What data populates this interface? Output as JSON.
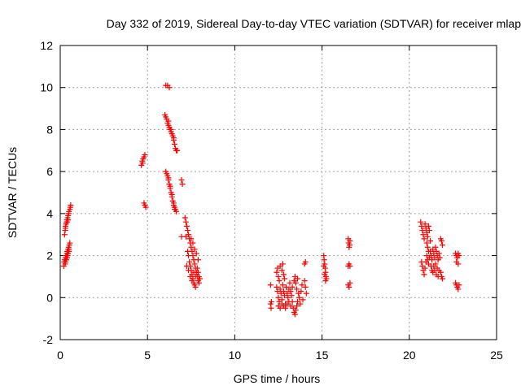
{
  "chart_data": {
    "type": "scatter",
    "title": "Day 332 of 2019, Sidereal Day-to-day VTEC variation (SDTVAR) for receiver mlap",
    "xlabel": "GPS time / hours",
    "ylabel": "SDTVAR / TECUs",
    "xlim": [
      0,
      25
    ],
    "ylim": [
      -2,
      12
    ],
    "x_ticks": [
      0,
      5,
      10,
      15,
      20,
      25
    ],
    "y_ticks": [
      -2,
      0,
      2,
      4,
      6,
      8,
      10,
      12
    ],
    "grid": true,
    "marker": "+",
    "marker_color": "#ff0000",
    "series": [
      {
        "name": "SDTVAR",
        "points": [
          [
            0.2,
            1.5
          ],
          [
            0.22,
            1.7
          ],
          [
            0.25,
            1.8
          ],
          [
            0.28,
            1.6
          ],
          [
            0.3,
            1.9
          ],
          [
            0.32,
            2.0
          ],
          [
            0.35,
            1.8
          ],
          [
            0.38,
            2.1
          ],
          [
            0.4,
            2.2
          ],
          [
            0.42,
            2.0
          ],
          [
            0.45,
            2.3
          ],
          [
            0.48,
            2.4
          ],
          [
            0.5,
            2.2
          ],
          [
            0.52,
            2.5
          ],
          [
            0.55,
            2.6
          ],
          [
            0.3,
            1.7
          ],
          [
            0.35,
            2.0
          ],
          [
            0.4,
            1.9
          ],
          [
            0.45,
            2.1
          ],
          [
            0.5,
            2.3
          ],
          [
            0.25,
            3.0
          ],
          [
            0.28,
            3.2
          ],
          [
            0.3,
            3.4
          ],
          [
            0.33,
            3.5
          ],
          [
            0.36,
            3.6
          ],
          [
            0.38,
            3.7
          ],
          [
            0.4,
            3.6
          ],
          [
            0.42,
            3.8
          ],
          [
            0.45,
            3.9
          ],
          [
            0.48,
            4.0
          ],
          [
            0.5,
            4.1
          ],
          [
            0.55,
            4.2
          ],
          [
            0.58,
            4.3
          ],
          [
            0.6,
            4.4
          ],
          [
            0.3,
            3.3
          ],
          [
            0.45,
            3.7
          ],
          [
            4.65,
            6.3
          ],
          [
            4.7,
            6.5
          ],
          [
            4.75,
            6.6
          ],
          [
            4.8,
            6.7
          ],
          [
            4.85,
            6.8
          ],
          [
            4.72,
            6.4
          ],
          [
            4.8,
            4.5
          ],
          [
            4.85,
            4.4
          ],
          [
            4.9,
            4.3
          ],
          [
            6.05,
            10.1
          ],
          [
            6.15,
            10.1
          ],
          [
            6.25,
            10.0
          ],
          [
            6.0,
            8.7
          ],
          [
            6.05,
            8.6
          ],
          [
            6.1,
            8.5
          ],
          [
            6.15,
            8.3
          ],
          [
            6.2,
            8.2
          ],
          [
            6.25,
            8.1
          ],
          [
            6.3,
            8.0
          ],
          [
            6.35,
            7.9
          ],
          [
            6.4,
            7.8
          ],
          [
            6.45,
            7.7
          ],
          [
            6.5,
            7.5
          ],
          [
            6.55,
            7.3
          ],
          [
            6.6,
            7.1
          ],
          [
            6.65,
            7.0
          ],
          [
            6.7,
            7.0
          ],
          [
            6.2,
            8.4
          ],
          [
            6.35,
            8.0
          ],
          [
            6.5,
            7.6
          ],
          [
            6.05,
            6.0
          ],
          [
            6.1,
            5.9
          ],
          [
            6.15,
            5.8
          ],
          [
            6.2,
            5.6
          ],
          [
            6.25,
            5.4
          ],
          [
            6.3,
            5.2
          ],
          [
            6.35,
            5.0
          ],
          [
            6.4,
            4.8
          ],
          [
            6.45,
            4.6
          ],
          [
            6.5,
            4.4
          ],
          [
            6.55,
            4.3
          ],
          [
            6.6,
            4.2
          ],
          [
            6.65,
            4.1
          ],
          [
            6.2,
            5.7
          ],
          [
            6.3,
            5.3
          ],
          [
            6.4,
            4.9
          ],
          [
            6.5,
            4.5
          ],
          [
            6.55,
            4.2
          ],
          [
            6.95,
            5.6
          ],
          [
            7.0,
            5.4
          ],
          [
            6.95,
            2.9
          ],
          [
            7.15,
            3.8
          ],
          [
            7.2,
            3.6
          ],
          [
            7.25,
            3.4
          ],
          [
            7.3,
            3.2
          ],
          [
            7.35,
            3.0
          ],
          [
            7.4,
            2.8
          ],
          [
            7.45,
            2.6
          ],
          [
            7.5,
            2.4
          ],
          [
            7.55,
            2.2
          ],
          [
            7.6,
            2.0
          ],
          [
            7.65,
            1.8
          ],
          [
            7.7,
            1.6
          ],
          [
            7.75,
            1.4
          ],
          [
            7.8,
            1.2
          ],
          [
            7.85,
            1.0
          ],
          [
            7.9,
            0.8
          ],
          [
            7.95,
            0.7
          ],
          [
            7.3,
            2.2
          ],
          [
            7.35,
            2.0
          ],
          [
            7.4,
            1.7
          ],
          [
            7.45,
            1.5
          ],
          [
            7.5,
            1.3
          ],
          [
            7.55,
            1.1
          ],
          [
            7.6,
            0.9
          ],
          [
            7.65,
            0.7
          ],
          [
            7.7,
            0.6
          ],
          [
            7.75,
            0.5
          ],
          [
            7.25,
            1.5
          ],
          [
            7.35,
            1.3
          ],
          [
            7.45,
            1.0
          ],
          [
            7.55,
            0.8
          ],
          [
            7.65,
            1.2
          ],
          [
            7.75,
            1.0
          ],
          [
            7.85,
            1.4
          ],
          [
            7.9,
            1.2
          ],
          [
            7.95,
            1.0
          ],
          [
            8.0,
            0.9
          ],
          [
            7.5,
            2.8
          ],
          [
            7.6,
            2.6
          ],
          [
            7.7,
            2.3
          ],
          [
            7.8,
            2.1
          ],
          [
            7.9,
            1.8
          ],
          [
            7.2,
            2.9
          ],
          [
            12.05,
            0.6
          ],
          [
            12.05,
            -0.3
          ],
          [
            12.08,
            -0.5
          ],
          [
            12.1,
            -0.2
          ],
          [
            12.4,
            1.2
          ],
          [
            12.45,
            1.4
          ],
          [
            12.5,
            1.0
          ],
          [
            12.55,
            0.8
          ],
          [
            12.6,
            1.5
          ],
          [
            12.7,
            1.3
          ],
          [
            12.75,
            1.6
          ],
          [
            12.8,
            1.1
          ],
          [
            12.85,
            0.9
          ],
          [
            12.4,
            0.5
          ],
          [
            12.45,
            0.3
          ],
          [
            12.5,
            0.0
          ],
          [
            12.55,
            -0.2
          ],
          [
            12.6,
            0.4
          ],
          [
            12.65,
            0.2
          ],
          [
            12.7,
            -0.1
          ],
          [
            12.75,
            0.6
          ],
          [
            12.8,
            0.3
          ],
          [
            12.85,
            0.1
          ],
          [
            12.9,
            -0.3
          ],
          [
            12.95,
            0.5
          ],
          [
            13.0,
            0.2
          ],
          [
            13.05,
            0.0
          ],
          [
            13.1,
            0.4
          ],
          [
            13.15,
            0.7
          ],
          [
            13.2,
            0.3
          ],
          [
            12.5,
            -0.4
          ],
          [
            12.6,
            -0.5
          ],
          [
            12.7,
            -0.3
          ],
          [
            12.8,
            -0.4
          ],
          [
            12.9,
            -0.5
          ],
          [
            13.0,
            -0.3
          ],
          [
            13.1,
            -0.2
          ],
          [
            13.2,
            -0.4
          ],
          [
            13.25,
            0.1
          ],
          [
            13.3,
            -0.2
          ],
          [
            13.35,
            -0.5
          ],
          [
            13.4,
            -0.7
          ],
          [
            13.45,
            -0.8
          ],
          [
            13.5,
            -0.6
          ],
          [
            13.55,
            -0.4
          ],
          [
            13.6,
            -0.2
          ],
          [
            13.3,
            0.5
          ],
          [
            13.4,
            0.8
          ],
          [
            13.45,
            1.0
          ],
          [
            13.5,
            0.7
          ],
          [
            13.55,
            0.4
          ],
          [
            13.6,
            0.9
          ],
          [
            13.65,
            0.2
          ],
          [
            13.7,
            0.0
          ],
          [
            13.75,
            -0.3
          ],
          [
            13.8,
            0.3
          ],
          [
            13.85,
            0.6
          ],
          [
            14.0,
            0.8
          ],
          [
            14.05,
            0.5
          ],
          [
            14.0,
            1.6
          ],
          [
            14.05,
            1.7
          ],
          [
            13.9,
            -0.1
          ],
          [
            14.1,
            0.2
          ],
          [
            15.1,
            2.0
          ],
          [
            15.12,
            1.8
          ],
          [
            15.15,
            1.6
          ],
          [
            15.18,
            1.4
          ],
          [
            15.2,
            1.2
          ],
          [
            15.22,
            1.0
          ],
          [
            15.25,
            0.9
          ],
          [
            15.1,
            1.5
          ],
          [
            15.15,
            1.1
          ],
          [
            15.2,
            0.8
          ],
          [
            16.5,
            2.8
          ],
          [
            16.52,
            2.6
          ],
          [
            16.55,
            2.4
          ],
          [
            16.58,
            2.5
          ],
          [
            16.6,
            2.7
          ],
          [
            16.5,
            1.5
          ],
          [
            16.55,
            1.6
          ],
          [
            16.6,
            1.5
          ],
          [
            16.5,
            0.6
          ],
          [
            16.55,
            0.5
          ],
          [
            16.6,
            0.7
          ],
          [
            20.65,
            3.6
          ],
          [
            20.7,
            3.4
          ],
          [
            20.75,
            3.2
          ],
          [
            20.8,
            3.0
          ],
          [
            20.85,
            2.8
          ],
          [
            20.9,
            3.5
          ],
          [
            20.95,
            3.3
          ],
          [
            21.0,
            3.1
          ],
          [
            21.05,
            2.9
          ],
          [
            21.1,
            3.4
          ],
          [
            21.15,
            3.2
          ],
          [
            21.2,
            2.7
          ],
          [
            20.7,
            1.7
          ],
          [
            20.75,
            1.5
          ],
          [
            20.8,
            1.3
          ],
          [
            20.85,
            1.1
          ],
          [
            20.9,
            1.4
          ],
          [
            20.95,
            1.7
          ],
          [
            21.0,
            2.0
          ],
          [
            21.05,
            1.8
          ],
          [
            21.1,
            1.6
          ],
          [
            21.15,
            1.9
          ],
          [
            21.2,
            2.2
          ],
          [
            21.25,
            2.0
          ],
          [
            21.3,
            1.8
          ],
          [
            21.35,
            2.3
          ],
          [
            21.4,
            2.1
          ],
          [
            21.45,
            1.9
          ],
          [
            21.5,
            2.4
          ],
          [
            21.55,
            2.2
          ],
          [
            21.6,
            2.0
          ],
          [
            21.65,
            1.8
          ],
          [
            21.7,
            2.1
          ],
          [
            21.75,
            1.9
          ],
          [
            21.0,
            2.6
          ],
          [
            21.05,
            2.4
          ],
          [
            21.1,
            2.2
          ],
          [
            21.25,
            1.5
          ],
          [
            21.3,
            1.3
          ],
          [
            21.35,
            1.2
          ],
          [
            21.4,
            1.5
          ],
          [
            21.45,
            1.3
          ],
          [
            21.5,
            1.6
          ],
          [
            21.6,
            1.4
          ],
          [
            21.7,
            1.3
          ],
          [
            21.8,
            1.2
          ],
          [
            21.85,
            1.0
          ],
          [
            21.9,
            0.9
          ],
          [
            21.8,
            2.8
          ],
          [
            21.85,
            2.7
          ],
          [
            21.9,
            2.5
          ],
          [
            21.55,
            1.1
          ],
          [
            21.65,
            1.0
          ],
          [
            22.65,
            2.1
          ],
          [
            22.7,
            2.0
          ],
          [
            22.75,
            1.9
          ],
          [
            22.8,
            2.1
          ],
          [
            22.85,
            2.0
          ],
          [
            22.7,
            1.7
          ],
          [
            22.8,
            1.6
          ],
          [
            22.65,
            0.7
          ],
          [
            22.7,
            0.6
          ],
          [
            22.75,
            0.5
          ],
          [
            22.8,
            0.4
          ],
          [
            22.85,
            0.6
          ]
        ]
      }
    ]
  }
}
